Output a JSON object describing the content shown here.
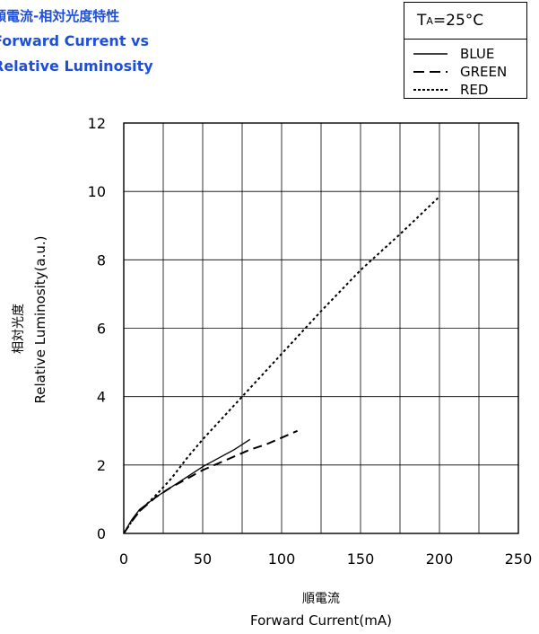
{
  "title": {
    "line1": "順電流-相対光度特性",
    "line2": "Forward Current vs",
    "line3": "Relative Luminosity"
  },
  "legend": {
    "condition_main": "T",
    "condition_sub": "A",
    "condition_value": "=25°C",
    "items": [
      {
        "label": "BLUE",
        "style": "solid"
      },
      {
        "label": "GREEN",
        "style": "dashed"
      },
      {
        "label": "RED",
        "style": "dotted"
      }
    ]
  },
  "chart_data": {
    "type": "line",
    "xlabel_ja": "順電流",
    "xlabel": "Forward Current(mA)",
    "ylabel_ja": "相対光度",
    "ylabel": "Relative Luminosity(a.u.)",
    "xlim": [
      0,
      250
    ],
    "ylim": [
      0,
      12
    ],
    "xticks": [
      0,
      50,
      100,
      150,
      200,
      250
    ],
    "yticks": [
      0,
      2,
      4,
      6,
      8,
      10,
      12
    ],
    "grid": true,
    "legend_position": "top-right",
    "series": [
      {
        "name": "BLUE",
        "style": "solid",
        "x": [
          0,
          5,
          10,
          20,
          30,
          40,
          50,
          60,
          70,
          80
        ],
        "y": [
          0,
          0.4,
          0.7,
          1.05,
          1.35,
          1.65,
          1.95,
          2.2,
          2.45,
          2.75
        ]
      },
      {
        "name": "GREEN",
        "style": "dashed",
        "x": [
          0,
          5,
          10,
          20,
          30,
          40,
          50,
          60,
          70,
          80,
          90,
          100,
          110
        ],
        "y": [
          0,
          0.35,
          0.65,
          1.05,
          1.35,
          1.6,
          1.85,
          2.05,
          2.25,
          2.45,
          2.6,
          2.8,
          3.0
        ]
      },
      {
        "name": "RED",
        "style": "dotted",
        "x": [
          0,
          5,
          10,
          20,
          30,
          40,
          50,
          75,
          100,
          125,
          150,
          175,
          200
        ],
        "y": [
          0,
          0.35,
          0.65,
          1.1,
          1.6,
          2.2,
          2.75,
          4.0,
          5.25,
          6.5,
          7.7,
          8.75,
          9.85
        ]
      }
    ]
  },
  "colors": {
    "title": "#1f4fd6",
    "axis": "#000000",
    "grid": "#000000"
  }
}
